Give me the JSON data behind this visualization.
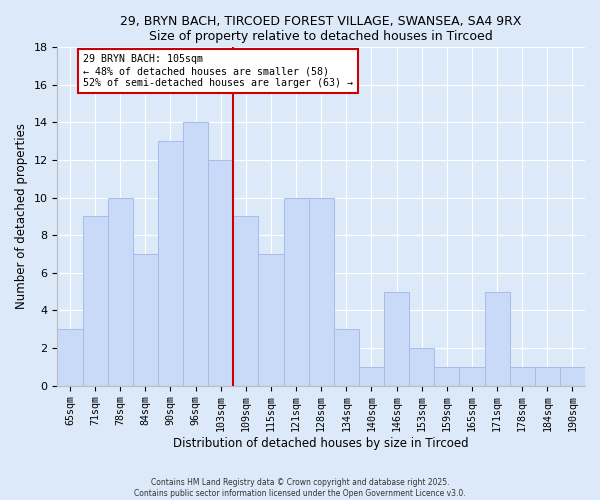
{
  "title1": "29, BRYN BACH, TIRCOED FOREST VILLAGE, SWANSEA, SA4 9RX",
  "title2": "Size of property relative to detached houses in Tircoed",
  "xlabel": "Distribution of detached houses by size in Tircoed",
  "ylabel": "Number of detached properties",
  "categories": [
    "65sqm",
    "71sqm",
    "78sqm",
    "84sqm",
    "90sqm",
    "96sqm",
    "103sqm",
    "109sqm",
    "115sqm",
    "121sqm",
    "128sqm",
    "134sqm",
    "140sqm",
    "146sqm",
    "153sqm",
    "159sqm",
    "165sqm",
    "171sqm",
    "178sqm",
    "184sqm",
    "190sqm"
  ],
  "values": [
    3,
    9,
    10,
    7,
    13,
    14,
    12,
    9,
    7,
    10,
    10,
    3,
    1,
    5,
    2,
    1,
    1,
    5,
    1,
    1,
    1
  ],
  "bar_color": "#c9daf8",
  "bar_edge_color": "#a4bce8",
  "vline_x_index": 6,
  "vline_color": "#cc0000",
  "annotation_title": "29 BRYN BACH: 105sqm",
  "annotation_line1": "← 48% of detached houses are smaller (58)",
  "annotation_line2": "52% of semi-detached houses are larger (63) →",
  "annotation_box_color": "#ffffff",
  "annotation_box_edge": "#cc0000",
  "ylim": [
    0,
    18
  ],
  "yticks": [
    0,
    2,
    4,
    6,
    8,
    10,
    12,
    14,
    16,
    18
  ],
  "background_color": "#dce9f8",
  "grid_color": "#ffffff",
  "footer1": "Contains HM Land Registry data © Crown copyright and database right 2025.",
  "footer2": "Contains public sector information licensed under the Open Government Licence v3.0."
}
